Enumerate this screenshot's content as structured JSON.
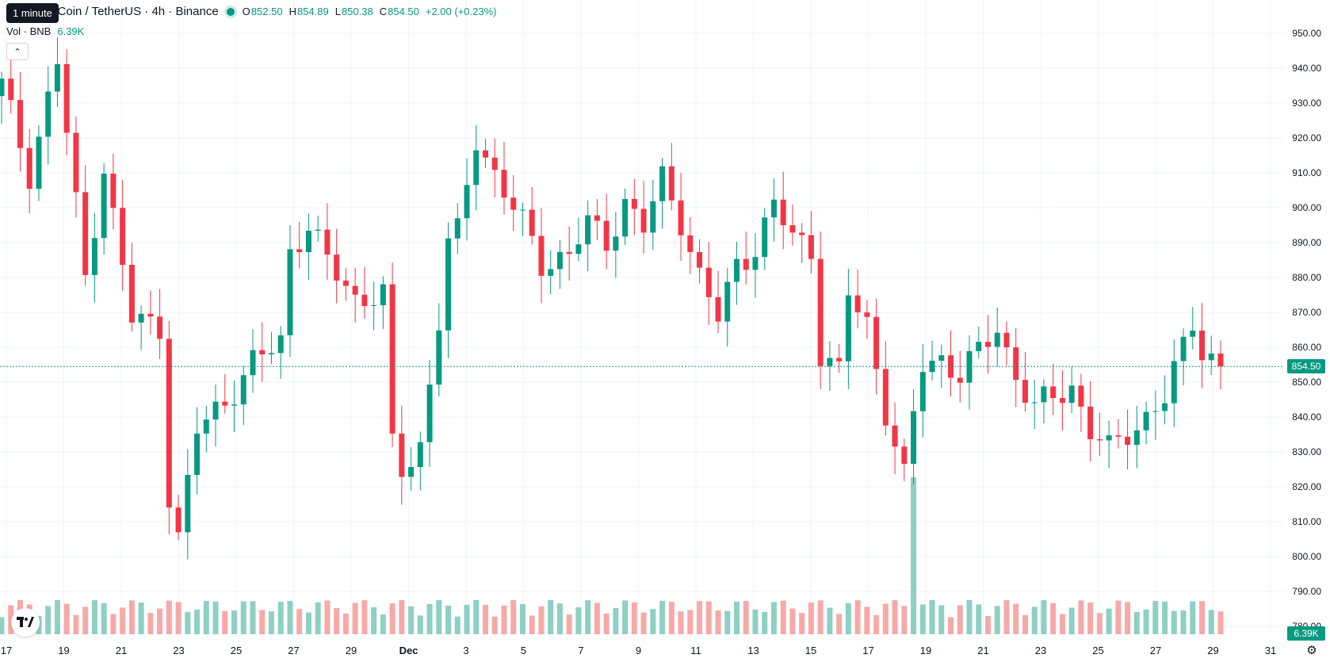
{
  "header": {
    "tooltip": "1 minute",
    "title": "e Coin / TetherUS · 4h · Binance",
    "ohlc": [
      {
        "key": "O",
        "value": "852.50"
      },
      {
        "key": "H",
        "value": "854.89"
      },
      {
        "key": "L",
        "value": "850.38"
      },
      {
        "key": "C",
        "value": "854.50"
      }
    ],
    "change": "+2.00 (+0.23%)",
    "status_color": "#089981"
  },
  "volume": {
    "label": "Vol · BNB",
    "value": "6.39K"
  },
  "colors": {
    "up": "#089981",
    "down": "#F23645",
    "up_vol": "#8ED0C3",
    "down_vol": "#F7A9A8",
    "grid": "#F0F3FA"
  },
  "price_tags": {
    "last_price": "854.50",
    "last_volume": "6.39K"
  },
  "icons": {
    "logo": "tradingview-logo-icon",
    "collapse": "chevron-up-icon",
    "settings": "gear-icon"
  },
  "chart_data": {
    "type": "candlestick",
    "title": "e Coin / TetherUS · 4h · Binance",
    "ylim": [
      775,
      955
    ],
    "y_ticks": [
      "950.00",
      "940.00",
      "930.00",
      "920.00",
      "910.00",
      "900.00",
      "890.00",
      "880.00",
      "870.00",
      "860.00",
      "850.00",
      "840.00",
      "830.00",
      "820.00",
      "810.00",
      "800.00",
      "790.00",
      "780.00"
    ],
    "x_ticks": [
      "17",
      "19",
      "21",
      "23",
      "25",
      "27",
      "29",
      "Dec",
      "3",
      "5",
      "7",
      "9",
      "11",
      "13",
      "15",
      "17",
      "19",
      "21",
      "23",
      "25",
      "27",
      "29",
      "31"
    ],
    "grid": true,
    "last_price": 854.5,
    "close_path": [
      {
        "x": 0,
        "c": 935
      },
      {
        "x": 3,
        "c": 910
      },
      {
        "x": 6,
        "c": 942
      },
      {
        "x": 9,
        "c": 880
      },
      {
        "x": 11,
        "c": 912
      },
      {
        "x": 14,
        "c": 868
      },
      {
        "x": 17,
        "c": 866
      },
      {
        "x": 18,
        "c": 818
      },
      {
        "x": 19,
        "c": 805
      },
      {
        "x": 21,
        "c": 836
      },
      {
        "x": 24,
        "c": 845
      },
      {
        "x": 27,
        "c": 855
      },
      {
        "x": 30,
        "c": 862
      },
      {
        "x": 31,
        "c": 888
      },
      {
        "x": 33,
        "c": 895
      },
      {
        "x": 35,
        "c": 884
      },
      {
        "x": 37,
        "c": 878
      },
      {
        "x": 38,
        "c": 874
      },
      {
        "x": 40,
        "c": 875
      },
      {
        "x": 41,
        "c": 875
      },
      {
        "x": 42,
        "c": 831
      },
      {
        "x": 43,
        "c": 824
      },
      {
        "x": 45,
        "c": 832
      },
      {
        "x": 47,
        "c": 868
      },
      {
        "x": 48,
        "c": 890
      },
      {
        "x": 49,
        "c": 892
      },
      {
        "x": 51,
        "c": 920
      },
      {
        "x": 53,
        "c": 910
      },
      {
        "x": 56,
        "c": 895
      },
      {
        "x": 58,
        "c": 884
      },
      {
        "x": 61,
        "c": 887
      },
      {
        "x": 63,
        "c": 895
      },
      {
        "x": 65,
        "c": 890
      },
      {
        "x": 67,
        "c": 902
      },
      {
        "x": 69,
        "c": 894
      },
      {
        "x": 71,
        "c": 908
      },
      {
        "x": 73,
        "c": 897
      },
      {
        "x": 75,
        "c": 880
      },
      {
        "x": 77,
        "c": 868
      },
      {
        "x": 79,
        "c": 884
      },
      {
        "x": 81,
        "c": 889
      },
      {
        "x": 83,
        "c": 900
      },
      {
        "x": 85,
        "c": 892
      },
      {
        "x": 87,
        "c": 888
      },
      {
        "x": 88,
        "c": 859
      },
      {
        "x": 90,
        "c": 852
      },
      {
        "x": 91,
        "c": 875
      },
      {
        "x": 93,
        "c": 867
      },
      {
        "x": 95,
        "c": 842
      },
      {
        "x": 96,
        "c": 832
      },
      {
        "x": 97,
        "c": 822
      },
      {
        "x": 98,
        "c": 840
      },
      {
        "x": 99,
        "c": 855
      },
      {
        "x": 101,
        "c": 857
      },
      {
        "x": 103,
        "c": 852
      },
      {
        "x": 105,
        "c": 858
      },
      {
        "x": 107,
        "c": 866
      },
      {
        "x": 109,
        "c": 852
      },
      {
        "x": 111,
        "c": 842
      },
      {
        "x": 113,
        "c": 846
      },
      {
        "x": 115,
        "c": 849
      },
      {
        "x": 117,
        "c": 836
      },
      {
        "x": 119,
        "c": 830
      },
      {
        "x": 121,
        "c": 836
      },
      {
        "x": 123,
        "c": 840
      },
      {
        "x": 125,
        "c": 845
      },
      {
        "x": 127,
        "c": 860
      },
      {
        "x": 128,
        "c": 868
      },
      {
        "x": 129,
        "c": 860
      },
      {
        "x": 131,
        "c": 854
      }
    ],
    "volume_spike": {
      "index": 98,
      "value": 55
    },
    "volume_max": 55
  }
}
